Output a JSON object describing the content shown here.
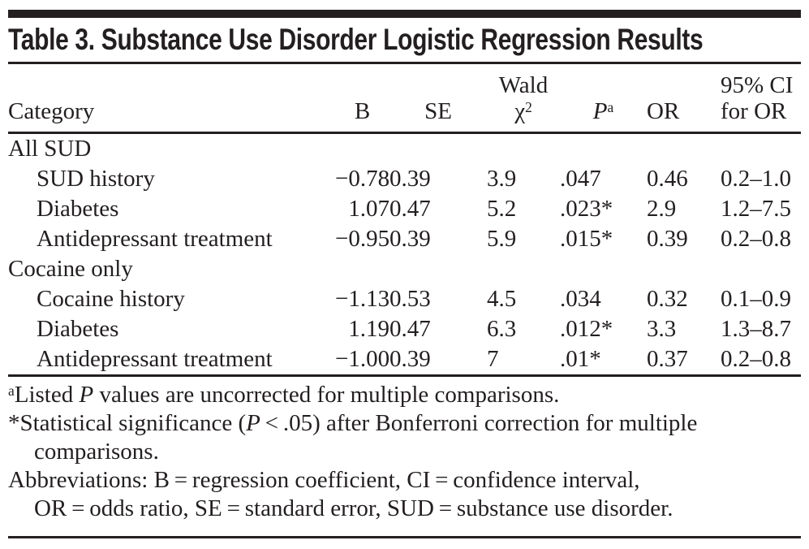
{
  "title": "Table 3. Substance Use Disorder Logistic Regression Results",
  "colors": {
    "text": "#231f20",
    "rule": "#231f20",
    "background": "#ffffff"
  },
  "table": {
    "columns": [
      {
        "key": "category",
        "lines": [
          [
            {
              "t": "Category"
            }
          ]
        ]
      },
      {
        "key": "b",
        "lines": [
          [
            {
              "t": "B"
            }
          ]
        ]
      },
      {
        "key": "se",
        "lines": [
          [
            {
              "t": "SE"
            }
          ]
        ]
      },
      {
        "key": "wald",
        "lines": [
          [
            {
              "t": "Wald"
            }
          ],
          [
            {
              "t": "χ"
            },
            {
              "t": "2",
              "sup": true
            }
          ]
        ]
      },
      {
        "key": "p",
        "lines": [
          [
            {
              "t": "P",
              "i": true
            },
            {
              "t": "a",
              "sup": true
            }
          ]
        ]
      },
      {
        "key": "or",
        "lines": [
          [
            {
              "t": "OR"
            }
          ]
        ]
      },
      {
        "key": "ci",
        "lines": [
          [
            {
              "t": "95% CI"
            }
          ],
          [
            {
              "t": "for OR"
            }
          ]
        ]
      }
    ],
    "sections": [
      {
        "header": "All SUD",
        "rows": [
          {
            "category": "SUD history",
            "b": "−0.78",
            "se": "0.39",
            "wald": "3.9",
            "p": ".047",
            "or": "0.46",
            "ci": "0.2–1.0"
          },
          {
            "category": "Diabetes",
            "b": "1.07",
            "se": "0.47",
            "wald": "5.2",
            "p": ".023*",
            "or": "2.9",
            "ci": "1.2–7.5"
          },
          {
            "category": "Antidepressant treatment",
            "b": "−0.95",
            "se": "0.39",
            "wald": "5.9",
            "p": ".015*",
            "or": "0.39",
            "ci": "0.2–0.8"
          }
        ]
      },
      {
        "header": "Cocaine only",
        "rows": [
          {
            "category": "Cocaine history",
            "b": "−1.13",
            "se": "0.53",
            "wald": "4.5",
            "p": ".034",
            "or": "0.32",
            "ci": "0.1–0.9"
          },
          {
            "category": "Diabetes",
            "b": "1.19",
            "se": "0.47",
            "wald": "6.3",
            "p": ".012*",
            "or": "3.3",
            "ci": "1.3–8.7"
          },
          {
            "category": "Antidepressant treatment",
            "b": "−1.00",
            "se": "0.39",
            "wald": "7",
            "p": ".01*",
            "or": "0.37",
            "ci": "0.2–0.8"
          }
        ]
      }
    ]
  },
  "footnotes": [
    {
      "name": "footnote-p-values",
      "lines": [
        [
          {
            "t": "a",
            "sup": true
          },
          {
            "t": "Listed "
          },
          {
            "t": "P",
            "i": true
          },
          {
            "t": " values are uncorrected for multiple comparisons."
          }
        ]
      ]
    },
    {
      "name": "footnote-significance",
      "lines": [
        [
          {
            "t": "*Statistical significance ("
          },
          {
            "t": "P",
            "i": true
          },
          {
            "t": " < .05) after Bonferroni correction for multiple"
          }
        ],
        [
          {
            "t": "comparisons."
          }
        ]
      ]
    },
    {
      "name": "footnote-abbreviations",
      "lines": [
        [
          {
            "t": "Abbreviations: B = regression coefficient, CI = confidence interval,"
          }
        ],
        [
          {
            "t": "OR = odds ratio, SE = standard error, SUD = substance use disorder."
          }
        ]
      ]
    }
  ]
}
